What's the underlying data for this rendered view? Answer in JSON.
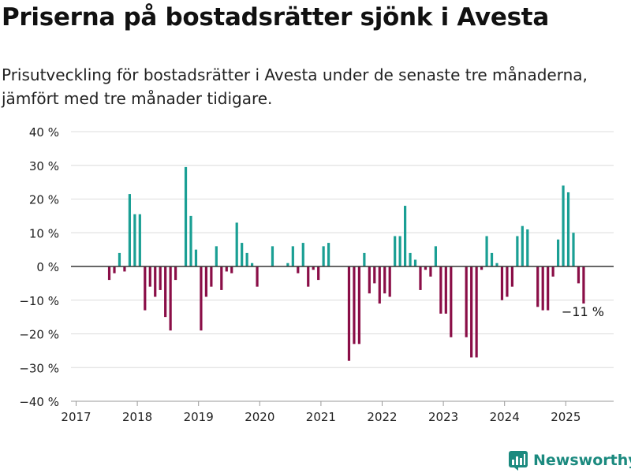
{
  "title": "Priserna på bostadsrätter sjönk i Avesta",
  "subtitle_line1": "Prisutveckling för bostadsrätter i Avesta under de senaste tre månaderna,",
  "subtitle_line2": "jämfört med tre månader tidigare.",
  "brand": "Newsworthy",
  "colors": {
    "positive": "#1a9f94",
    "negative": "#8a0e47",
    "grid": "#dcdcdc",
    "zero": "#333333"
  },
  "chart_data": {
    "type": "bar",
    "title": "Priserna på bostadsrätter sjönk i Avesta",
    "ylim": [
      -40,
      40
    ],
    "y_ticks": [
      40,
      30,
      20,
      10,
      0,
      -10,
      -20,
      -30,
      -40
    ],
    "y_tick_labels": [
      "40 %",
      "30 %",
      "20 %",
      "10 %",
      "0 %",
      "−10 %",
      "−20 %",
      "−30 %",
      "−40 %"
    ],
    "x_ticks": [
      "2017",
      "2018",
      "2019",
      "2020",
      "2021",
      "2022",
      "2023",
      "2024",
      "2025"
    ],
    "grid": true,
    "annotation": "−11 %",
    "series": [
      {
        "categories": [
          "2017-07",
          "2017-08",
          "2017-09",
          "2017-10",
          "2017-11",
          "2017-12",
          "2018-01",
          "2018-02",
          "2018-03",
          "2018-04",
          "2018-05",
          "2018-06",
          "2018-07",
          "2018-08",
          "2018-09",
          "2018-10",
          "2018-11",
          "2018-12",
          "2019-01",
          "2019-02",
          "2019-03",
          "2019-04",
          "2019-05",
          "2019-06",
          "2019-07",
          "2019-08",
          "2019-09",
          "2019-10",
          "2019-11",
          "2019-12",
          "2020-01",
          "2020-02",
          "2020-03",
          "2020-04",
          "2020-05",
          "2020-06",
          "2020-07",
          "2020-08",
          "2020-09",
          "2020-10",
          "2020-11",
          "2020-12",
          "2021-01",
          "2021-02",
          "2021-03",
          "2021-04",
          "2021-05",
          "2021-06",
          "2021-07",
          "2021-08",
          "2021-09",
          "2021-10",
          "2021-11",
          "2021-12",
          "2022-01",
          "2022-02",
          "2022-03",
          "2022-04",
          "2022-05",
          "2022-06",
          "2022-07",
          "2022-08",
          "2022-09",
          "2022-10",
          "2022-11",
          "2022-12",
          "2023-01",
          "2023-02",
          "2023-03",
          "2023-04",
          "2023-05",
          "2023-06",
          "2023-07",
          "2023-08",
          "2023-09",
          "2023-10",
          "2023-11",
          "2023-12",
          "2024-01",
          "2024-02",
          "2024-03",
          "2024-04",
          "2024-05",
          "2024-06",
          "2024-07",
          "2024-08",
          "2024-09",
          "2024-10",
          "2024-11",
          "2024-12",
          "2025-01",
          "2025-02",
          "2025-03",
          "2025-04"
        ],
        "values": [
          -4,
          -2,
          4,
          -1.5,
          21.5,
          15.5,
          15.5,
          -13,
          -6,
          -9,
          -7,
          -15,
          -19,
          -4,
          0,
          29.5,
          15,
          5,
          -19,
          -9,
          -6,
          6,
          -7,
          -1.5,
          -2,
          13,
          7,
          4,
          1,
          -6,
          0,
          0,
          6,
          0,
          0,
          1,
          6,
          -2,
          7,
          -6,
          -1,
          -4,
          6,
          7,
          0,
          0,
          0,
          -28,
          -23,
          -23,
          4,
          -8,
          -5,
          -11,
          -8,
          -9,
          9,
          9,
          18,
          4,
          2,
          -7,
          -1,
          -3,
          6,
          -14,
          -14,
          -21,
          0,
          0,
          -21,
          -27,
          -27,
          -1,
          9,
          4,
          1,
          -10,
          -9,
          -6,
          9,
          12,
          11,
          0,
          -12,
          -13,
          -13,
          -3,
          8,
          24,
          22,
          10,
          -5,
          -11
        ]
      }
    ]
  }
}
